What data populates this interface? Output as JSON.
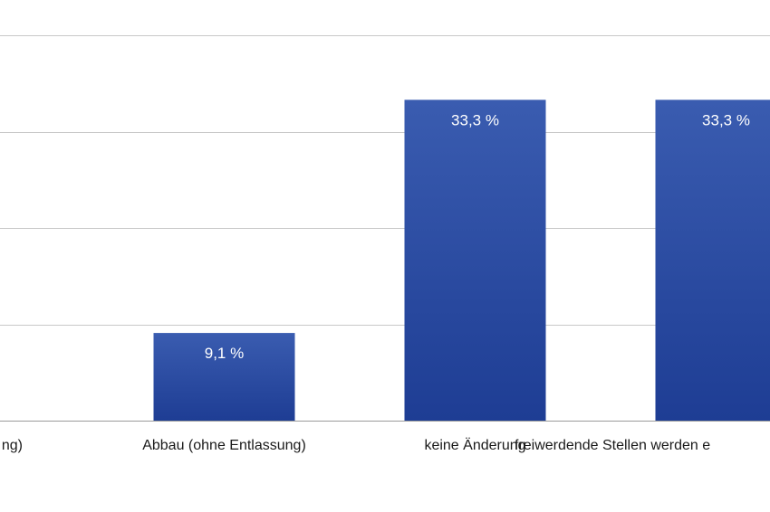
{
  "chart_data": {
    "type": "bar",
    "categories": [
      "(… Entlassung)",
      "Abbau (ohne Entlassung)",
      "keine Änderung",
      "freiwerdende Stellen werden …"
    ],
    "visible_category_text": [
      "ng)",
      "Abbau (ohne Entlassung)",
      "keine Änderung",
      "freiwerdende Stellen werden e"
    ],
    "values": [
      null,
      9.1,
      33.3,
      33.3
    ],
    "value_labels": [
      "",
      "9,1 %",
      "33,3 %",
      "33,3 %"
    ],
    "unit": "%",
    "ylim": [
      0,
      40
    ],
    "grid": true,
    "bar_color": "#2a4ea3",
    "bar_color_light": "#3a5cb0",
    "bar_color_dark": "#1e3d94",
    "grid_color": "#c8c8c8"
  }
}
